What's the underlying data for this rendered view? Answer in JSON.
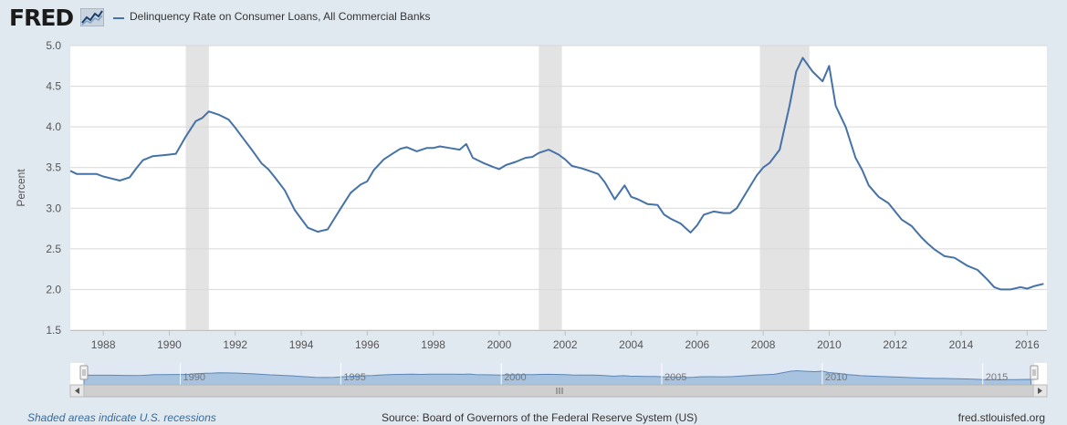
{
  "header": {
    "logo_text": "FRED",
    "logo_icon": "fred-graph-icon"
  },
  "footer": {
    "recession_note": "Shaded areas indicate U.S. recessions",
    "source": "Source: Board of Governors of the Federal Reserve System (US)",
    "site": "fred.stlouisfed.org"
  },
  "colors": {
    "series": "#4572a7",
    "recession": "#e3e3e3",
    "background": "#e1e9f0",
    "plot_bg": "#ffffff",
    "grid": "#d8d8d8",
    "navigator_fill": "#c6d7ea",
    "navigator_line": "#5c86b6"
  },
  "chart_data": {
    "type": "line",
    "title": "",
    "xlabel": "",
    "ylabel": "Percent",
    "xlim": [
      1987.0,
      2016.6
    ],
    "ylim": [
      1.5,
      5.0
    ],
    "y_ticks": [
      "1.5",
      "2.0",
      "2.5",
      "3.0",
      "3.5",
      "4.0",
      "4.5",
      "5.0"
    ],
    "x_ticks": [
      "1988",
      "1990",
      "1992",
      "1994",
      "1996",
      "1998",
      "2000",
      "2002",
      "2004",
      "2006",
      "2008",
      "2010",
      "2012",
      "2014",
      "2016"
    ],
    "navigator_ticks": [
      "1990",
      "1995",
      "2000",
      "2005",
      "2010",
      "2015"
    ],
    "grid": true,
    "legend_position": "top-left",
    "recessions": [
      [
        1990.5,
        1991.2
      ],
      [
        2001.2,
        2001.9
      ],
      [
        2007.9,
        2009.4
      ]
    ],
    "series": [
      {
        "name": "Delinquency Rate on Consumer Loans, All Commercial Banks",
        "x": [
          1987.0,
          1987.2,
          1987.5,
          1987.8,
          1988.0,
          1988.2,
          1988.5,
          1988.8,
          1989.0,
          1989.2,
          1989.5,
          1989.8,
          1990.0,
          1990.2,
          1990.5,
          1990.8,
          1991.0,
          1991.2,
          1991.5,
          1991.8,
          1992.0,
          1992.2,
          1992.5,
          1992.8,
          1993.0,
          1993.2,
          1993.5,
          1993.8,
          1994.0,
          1994.2,
          1994.5,
          1994.8,
          1995.0,
          1995.2,
          1995.5,
          1995.8,
          1996.0,
          1996.2,
          1996.5,
          1996.8,
          1997.0,
          1997.2,
          1997.5,
          1997.8,
          1998.0,
          1998.2,
          1998.5,
          1998.8,
          1999.0,
          1999.2,
          1999.5,
          1999.8,
          2000.0,
          2000.2,
          2000.5,
          2000.8,
          2001.0,
          2001.2,
          2001.5,
          2001.8,
          2002.0,
          2002.2,
          2002.5,
          2002.8,
          2003.0,
          2003.2,
          2003.5,
          2003.8,
          2004.0,
          2004.2,
          2004.5,
          2004.8,
          2005.0,
          2005.2,
          2005.5,
          2005.8,
          2006.0,
          2006.2,
          2006.5,
          2006.8,
          2007.0,
          2007.2,
          2007.5,
          2007.8,
          2008.0,
          2008.2,
          2008.5,
          2008.8,
          2009.0,
          2009.2,
          2009.5,
          2009.8,
          2010.0,
          2010.2,
          2010.5,
          2010.8,
          2011.0,
          2011.2,
          2011.5,
          2011.8,
          2012.0,
          2012.2,
          2012.5,
          2012.8,
          2013.0,
          2013.2,
          2013.5,
          2013.8,
          2014.0,
          2014.2,
          2014.5,
          2014.8,
          2015.0,
          2015.2,
          2015.5,
          2015.8,
          2016.0,
          2016.2,
          2016.5
        ],
        "values": [
          3.46,
          3.42,
          3.42,
          3.42,
          3.39,
          3.37,
          3.34,
          3.38,
          3.49,
          3.59,
          3.64,
          3.65,
          3.66,
          3.67,
          3.88,
          4.07,
          4.11,
          4.19,
          4.15,
          4.09,
          3.99,
          3.88,
          3.72,
          3.55,
          3.48,
          3.38,
          3.22,
          2.98,
          2.87,
          2.76,
          2.71,
          2.74,
          2.87,
          3.0,
          3.19,
          3.29,
          3.33,
          3.47,
          3.6,
          3.68,
          3.73,
          3.75,
          3.7,
          3.74,
          3.74,
          3.76,
          3.74,
          3.72,
          3.79,
          3.62,
          3.56,
          3.51,
          3.48,
          3.53,
          3.57,
          3.62,
          3.63,
          3.68,
          3.72,
          3.66,
          3.6,
          3.52,
          3.49,
          3.45,
          3.42,
          3.32,
          3.11,
          3.28,
          3.14,
          3.11,
          3.05,
          3.04,
          2.92,
          2.87,
          2.81,
          2.7,
          2.79,
          2.92,
          2.96,
          2.94,
          2.94,
          3.0,
          3.2,
          3.4,
          3.5,
          3.56,
          3.72,
          4.26,
          4.68,
          4.85,
          4.68,
          4.56,
          4.75,
          4.26,
          4.0,
          3.62,
          3.47,
          3.28,
          3.14,
          3.06,
          2.96,
          2.86,
          2.78,
          2.64,
          2.56,
          2.49,
          2.41,
          2.39,
          2.34,
          2.29,
          2.24,
          2.12,
          2.03,
          2.0,
          2.0,
          2.03,
          2.01,
          2.04,
          2.07
        ]
      }
    ]
  }
}
